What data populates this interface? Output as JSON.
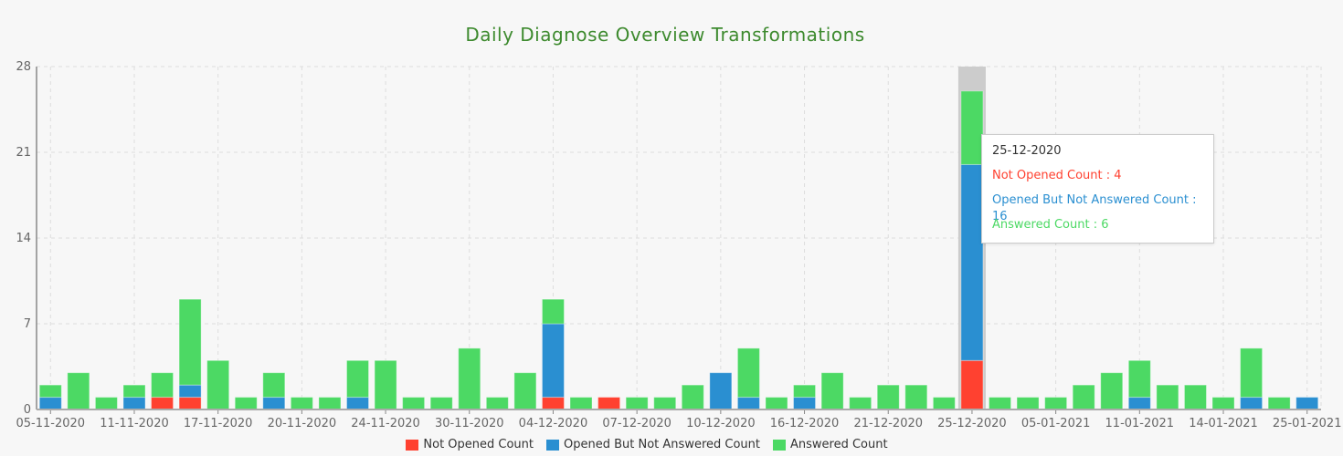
{
  "chart_data": {
    "type": "bar",
    "stacked": true,
    "title": "Daily Diagnose Overview Transformations",
    "xlabel": "",
    "ylabel": "",
    "ylim": [
      0,
      28
    ],
    "yticks": [
      0,
      7,
      14,
      21,
      28
    ],
    "grid": true,
    "legend_position": "bottom",
    "categories": [
      "05-11-2020",
      "",
      "",
      "11-11-2020",
      "",
      "",
      "17-11-2020",
      "",
      "",
      "20-11-2020",
      "",
      "",
      "24-11-2020",
      "",
      "",
      "30-11-2020",
      "",
      "",
      "04-12-2020",
      "",
      "",
      "07-12-2020",
      "",
      "",
      "10-12-2020",
      "",
      "",
      "16-12-2020",
      "",
      "",
      "21-12-2020",
      "",
      "",
      "25-12-2020",
      "",
      "",
      "05-01-2021",
      "",
      "",
      "11-01-2021",
      "",
      "",
      "14-01-2021",
      "",
      "",
      "25-01-2021"
    ],
    "series": [
      {
        "name": "Not Opened Count",
        "color": "#ff4130",
        "values": [
          0,
          0,
          0,
          0,
          1,
          1,
          0,
          0,
          0,
          0,
          0,
          0,
          0,
          0,
          0,
          0,
          0,
          0,
          1,
          0,
          1,
          0,
          0,
          0,
          0,
          0,
          0,
          0,
          0,
          0,
          0,
          0,
          0,
          4,
          0,
          0,
          0,
          0,
          0,
          0,
          0,
          0,
          0,
          0,
          0,
          0
        ]
      },
      {
        "name": "Opened But Not Answered Count",
        "color": "#2a8fd1",
        "values": [
          1,
          0,
          0,
          1,
          0,
          1,
          0,
          0,
          1,
          0,
          0,
          1,
          0,
          0,
          0,
          0,
          0,
          0,
          6,
          0,
          0,
          0,
          0,
          0,
          3,
          1,
          0,
          1,
          0,
          0,
          0,
          0,
          0,
          16,
          0,
          0,
          0,
          0,
          0,
          1,
          0,
          0,
          0,
          1,
          0,
          1
        ]
      },
      {
        "name": "Answered Count",
        "color": "#4cd964",
        "values": [
          1,
          3,
          1,
          1,
          2,
          7,
          4,
          1,
          2,
          1,
          1,
          3,
          4,
          1,
          1,
          5,
          1,
          3,
          2,
          1,
          0,
          1,
          1,
          2,
          0,
          4,
          1,
          1,
          3,
          1,
          2,
          2,
          1,
          6,
          1,
          1,
          1,
          2,
          3,
          3,
          2,
          2,
          1,
          4,
          1,
          0
        ]
      }
    ],
    "highlight_index": 33
  },
  "tooltip": {
    "date": "25-12-2020",
    "lines": [
      "Not Opened Count : 4",
      "Opened But Not Answered Count : 16",
      "Answered Count : 6"
    ]
  }
}
